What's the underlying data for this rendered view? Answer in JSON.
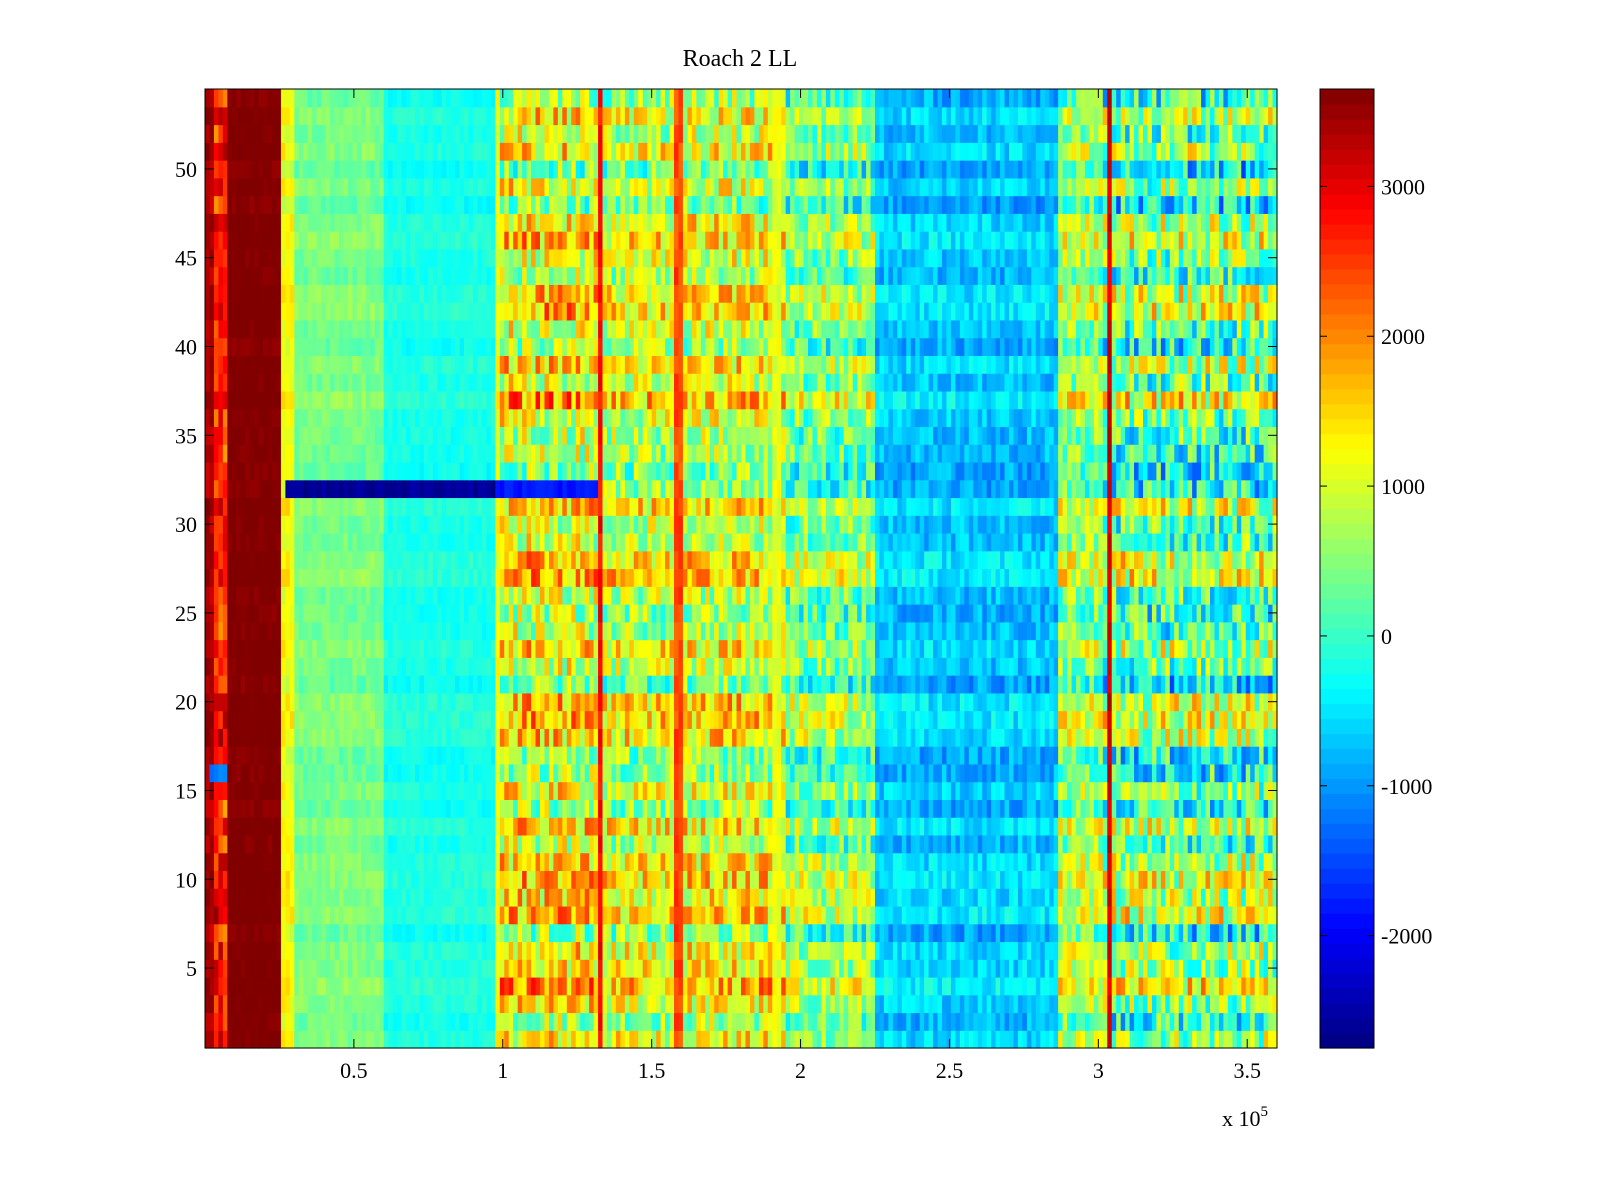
{
  "chart_data": {
    "type": "heatmap",
    "title": "Roach 2 LL",
    "xlabel": "",
    "ylabel": "",
    "x_multiplier_label": "x 10",
    "x_multiplier_exponent": "5",
    "xlim": [
      0,
      3.6
    ],
    "ylim": [
      0.5,
      54.5
    ],
    "x_ticks": [
      {
        "value": 0.5,
        "label": "0.5"
      },
      {
        "value": 1.0,
        "label": "1"
      },
      {
        "value": 1.5,
        "label": "1.5"
      },
      {
        "value": 2.0,
        "label": "2"
      },
      {
        "value": 2.5,
        "label": "2.5"
      },
      {
        "value": 3.0,
        "label": "3"
      },
      {
        "value": 3.5,
        "label": "3.5"
      }
    ],
    "y_ticks": [
      {
        "value": 5,
        "label": "5"
      },
      {
        "value": 10,
        "label": "10"
      },
      {
        "value": 15,
        "label": "15"
      },
      {
        "value": 20,
        "label": "20"
      },
      {
        "value": 25,
        "label": "25"
      },
      {
        "value": 30,
        "label": "30"
      },
      {
        "value": 35,
        "label": "35"
      },
      {
        "value": 40,
        "label": "40"
      },
      {
        "value": 45,
        "label": "45"
      },
      {
        "value": 50,
        "label": "50"
      }
    ],
    "n_rows": 54,
    "colorbar": {
      "colormap": "jet",
      "clim": [
        -2750,
        3650
      ],
      "ticks": [
        {
          "value": 3000,
          "label": "3000"
        },
        {
          "value": 2000,
          "label": "2000"
        },
        {
          "value": 1000,
          "label": "1000"
        },
        {
          "value": 0,
          "label": "0"
        },
        {
          "value": -1000,
          "label": "-1000"
        },
        {
          "value": -2000,
          "label": "-2000"
        }
      ]
    },
    "segments": [
      {
        "x_start": 0.0,
        "x_end": 0.03,
        "base": 3400,
        "amplitude": 400
      },
      {
        "x_start": 0.03,
        "x_end": 0.08,
        "base": 2600,
        "amplitude": 1200
      },
      {
        "x_start": 0.08,
        "x_end": 0.25,
        "base": 3650,
        "amplitude": 200
      },
      {
        "x_start": 0.25,
        "x_end": 0.3,
        "base": 1200,
        "amplitude": 500
      },
      {
        "x_start": 0.3,
        "x_end": 0.6,
        "base": 400,
        "amplitude": 400
      },
      {
        "x_start": 0.6,
        "x_end": 0.97,
        "base": -200,
        "amplitude": 300
      },
      {
        "x_start": 0.97,
        "x_end": 1.32,
        "base": 1100,
        "amplitude": 1900
      },
      {
        "x_start": 1.32,
        "x_end": 1.6,
        "base": 900,
        "amplitude": 1700
      },
      {
        "x_start": 1.6,
        "x_end": 1.95,
        "base": 1000,
        "amplitude": 1700
      },
      {
        "x_start": 1.95,
        "x_end": 2.25,
        "base": 400,
        "amplitude": 1600
      },
      {
        "x_start": 2.25,
        "x_end": 2.87,
        "base": -700,
        "amplitude": 700
      },
      {
        "x_start": 2.87,
        "x_end": 3.02,
        "base": 600,
        "amplitude": 1500
      },
      {
        "x_start": 3.02,
        "x_end": 3.6,
        "base": 300,
        "amplitude": 2200
      }
    ],
    "bright_columns": [
      {
        "x": 0.985,
        "value": 1200
      },
      {
        "x": 1.33,
        "value": 2800
      },
      {
        "x": 1.59,
        "value": 2400
      },
      {
        "x": 1.92,
        "value": 1100
      },
      {
        "x": 3.04,
        "value": 3100
      }
    ],
    "anomalous_rows": [
      {
        "row": 32,
        "x_start": 0.27,
        "x_end": 0.97,
        "value": -2600
      },
      {
        "row": 32,
        "x_start": 0.97,
        "x_end": 1.32,
        "value": -1800
      },
      {
        "row": 16,
        "x_start": 0.02,
        "x_end": 0.08,
        "value": -1200
      }
    ]
  }
}
